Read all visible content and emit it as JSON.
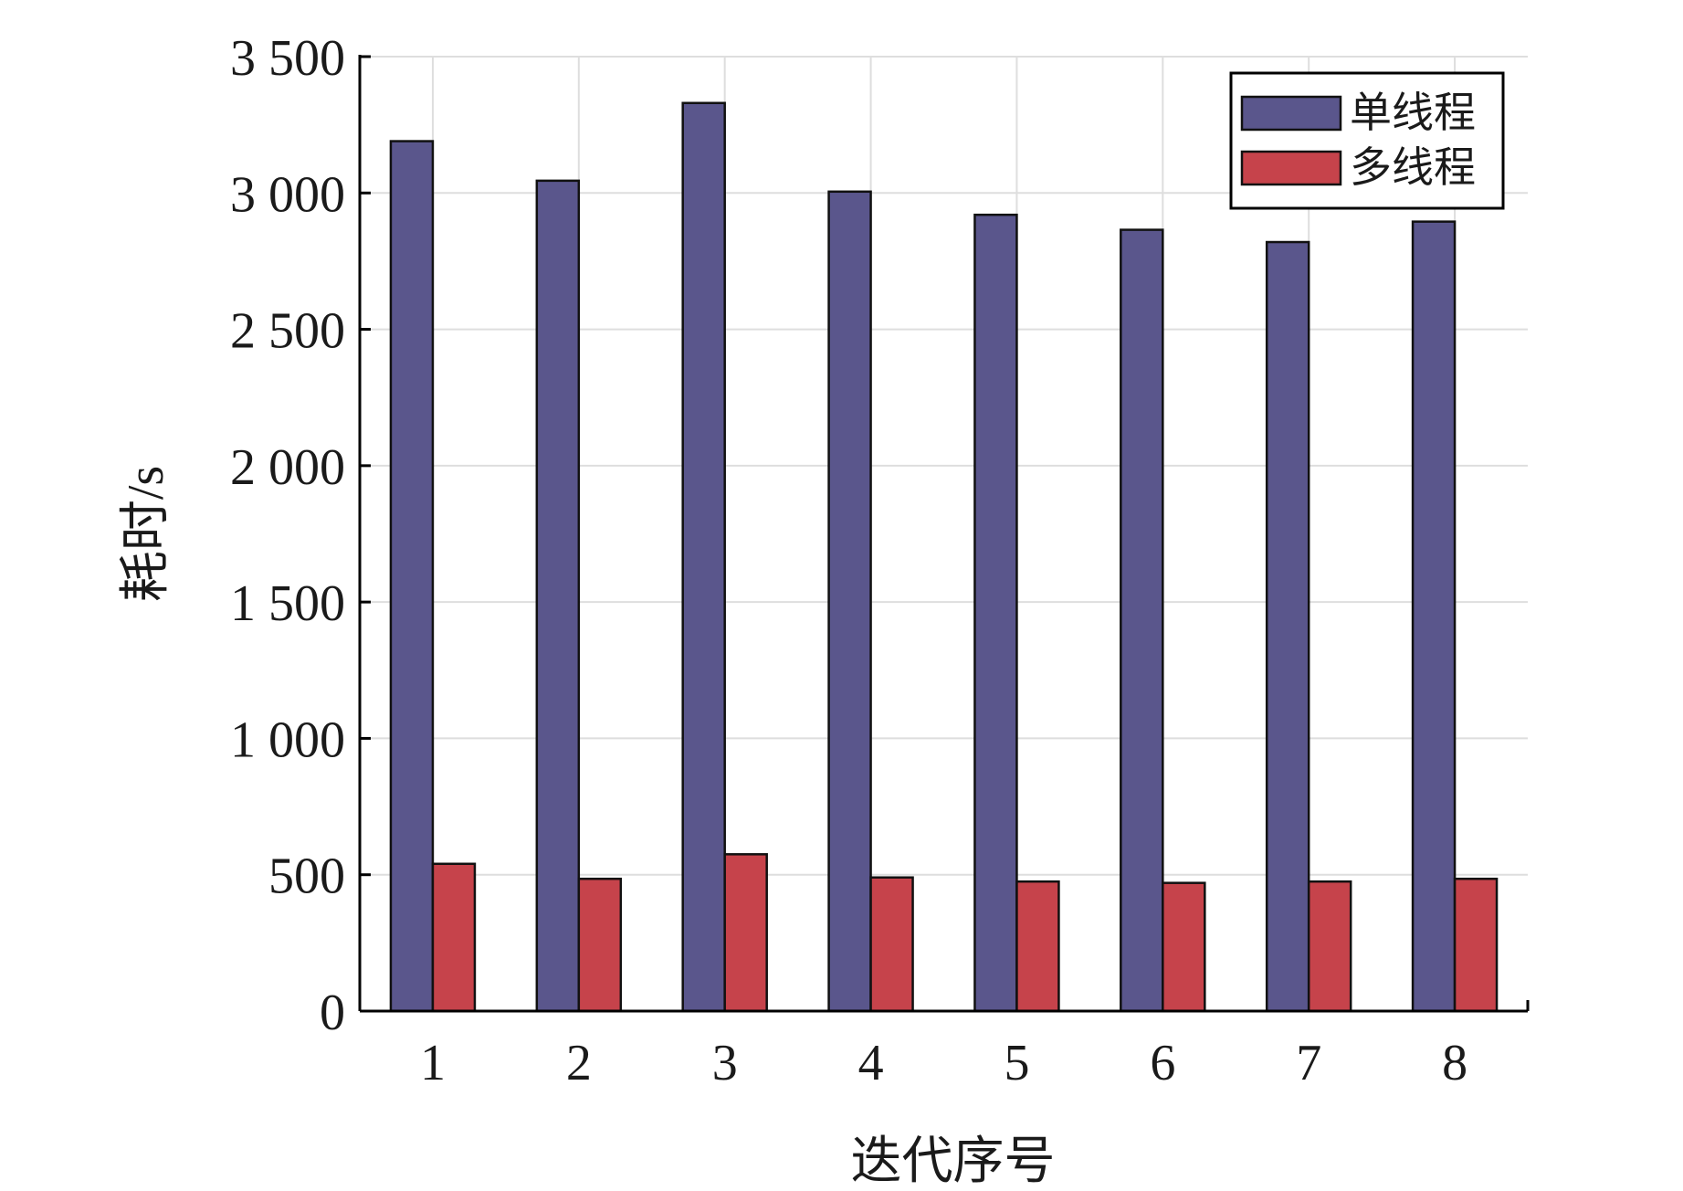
{
  "chart_data": {
    "type": "bar",
    "xlabel": "迭代序号",
    "ylabel": "耗时/s",
    "categories": [
      "1",
      "2",
      "3",
      "4",
      "5",
      "6",
      "7",
      "8"
    ],
    "series": [
      {
        "name": "单线程",
        "color": "#5a568c",
        "values": [
          3190,
          3045,
          3330,
          3005,
          2920,
          2865,
          2820,
          2895
        ]
      },
      {
        "name": "多线程",
        "color": "#c6434b",
        "values": [
          540,
          485,
          575,
          490,
          475,
          470,
          475,
          485
        ]
      }
    ],
    "ylim": [
      0,
      3500
    ],
    "yticks": [
      0,
      500,
      1000,
      1500,
      2000,
      2500,
      3000,
      3500
    ],
    "ytick_labels": [
      "0",
      "500",
      "1 000",
      "1 500",
      "2 000",
      "2 500",
      "3 000",
      "3 500"
    ],
    "grid": true,
    "legend_position": "top-right"
  }
}
